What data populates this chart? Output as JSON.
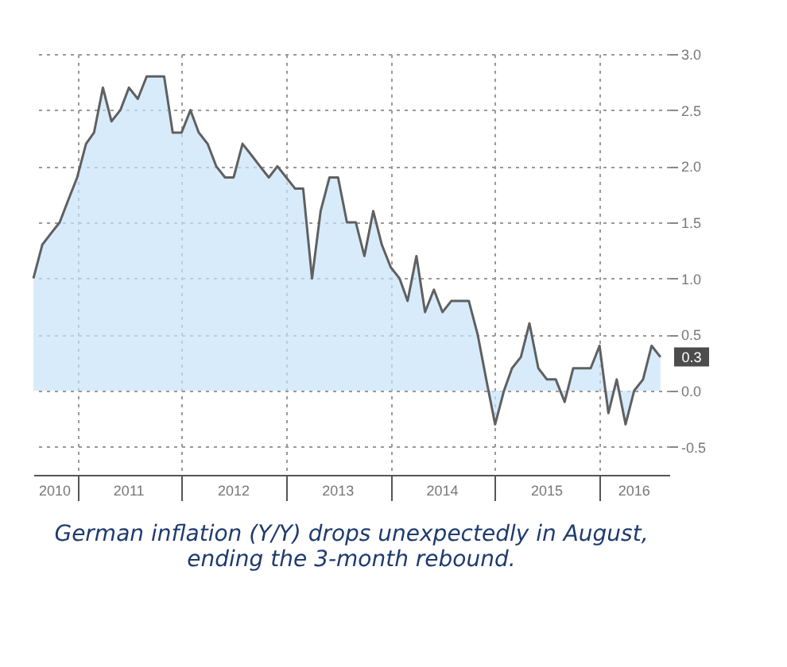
{
  "chart_data": {
    "type": "area",
    "x": [
      "2010-08",
      "2010-09",
      "2010-10",
      "2010-11",
      "2010-12",
      "2011-01",
      "2011-02",
      "2011-03",
      "2011-04",
      "2011-05",
      "2011-06",
      "2011-07",
      "2011-08",
      "2011-09",
      "2011-10",
      "2011-11",
      "2011-12",
      "2012-01",
      "2012-02",
      "2012-03",
      "2012-04",
      "2012-05",
      "2012-06",
      "2012-07",
      "2012-08",
      "2012-09",
      "2012-10",
      "2012-11",
      "2012-12",
      "2013-01",
      "2013-02",
      "2013-03",
      "2013-04",
      "2013-05",
      "2013-06",
      "2013-07",
      "2013-08",
      "2013-09",
      "2013-10",
      "2013-11",
      "2013-12",
      "2014-01",
      "2014-02",
      "2014-03",
      "2014-04",
      "2014-05",
      "2014-06",
      "2014-07",
      "2014-08",
      "2014-09",
      "2014-10",
      "2014-11",
      "2014-12",
      "2015-01",
      "2015-02",
      "2015-03",
      "2015-04",
      "2015-05",
      "2015-06",
      "2015-07",
      "2015-08",
      "2015-09",
      "2015-10",
      "2015-11",
      "2015-12",
      "2016-01",
      "2016-02",
      "2016-03",
      "2016-04",
      "2016-05",
      "2016-06",
      "2016-07",
      "2016-08"
    ],
    "series": [
      {
        "color": "#c6e2f9",
        "values": [
          1.0,
          1.3,
          1.4,
          1.5,
          1.7,
          1.9,
          2.2,
          2.3,
          2.7,
          2.4,
          2.5,
          2.7,
          2.6,
          2.8,
          2.8,
          2.8,
          2.3,
          2.3,
          2.5,
          2.3,
          2.2,
          2.0,
          1.9,
          1.9,
          2.2,
          2.1,
          2.0,
          1.9,
          2.0,
          1.9,
          1.8,
          1.8,
          1.0,
          1.6,
          1.9,
          1.9,
          1.5,
          1.5,
          1.2,
          1.6,
          1.3,
          1.1,
          1.0,
          0.8,
          1.2,
          0.7,
          0.9,
          0.7,
          0.8,
          0.8,
          0.8,
          0.5,
          0.1,
          -0.3,
          0.0,
          0.2,
          0.3,
          0.6,
          0.2,
          0.1,
          0.1,
          -0.1,
          0.2,
          0.2,
          0.2,
          0.4,
          -0.2,
          0.1,
          -0.3,
          0.0,
          0.1,
          0.4,
          0.3
        ]
      }
    ],
    "xlim": [
      "2010-08",
      "2016-09"
    ],
    "xticks": [
      {
        "value": "2011-01",
        "label": null
      },
      {
        "value": "2012-01",
        "label": null
      },
      {
        "value": "2013-01",
        "label": null
      },
      {
        "value": "2014-01",
        "label": null
      },
      {
        "value": "2015-01",
        "label": null
      },
      {
        "value": "2016-01",
        "label": null
      },
      {
        "value": "2010-10-15",
        "label": "2010"
      },
      {
        "value": "2011-07",
        "label": "2011"
      },
      {
        "value": "2012-07",
        "label": "2012"
      },
      {
        "value": "2013-07",
        "label": "2013"
      },
      {
        "value": "2014-07",
        "label": "2014"
      },
      {
        "value": "2015-07",
        "label": "2015"
      },
      {
        "value": "2016-05",
        "label": "2016"
      }
    ],
    "ylim": [
      -0.75,
      3.0
    ],
    "yticks": [
      {
        "value": -0.5,
        "label": "-0.5"
      },
      {
        "value": 0,
        "label": "0.0"
      },
      {
        "value": 0.5,
        "label": "0.5"
      },
      {
        "value": 1,
        "label": "1.0"
      },
      {
        "value": 1.5,
        "label": "1.5"
      },
      {
        "value": 2,
        "label": "2.0"
      },
      {
        "value": 2.5,
        "label": "2.5"
      },
      {
        "value": 3,
        "label": "3.0"
      }
    ],
    "grid": true,
    "line_style": "solid",
    "annotations": [
      {
        "text": "0.3",
        "x": "2016-08",
        "y": 0.3
      },
      "German inflation (Y/Y) drops unexpectedly in August, ending the 3-month rebound."
    ]
  }
}
